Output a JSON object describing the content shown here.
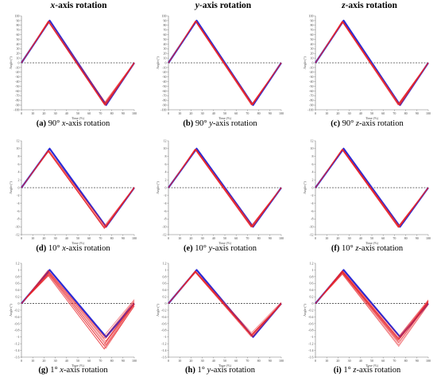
{
  "headers": [
    {
      "axis": "x",
      "rest": "-axis rotation"
    },
    {
      "axis": "y",
      "rest": "-axis rotation"
    },
    {
      "axis": "z",
      "rest": "-axis rotation"
    }
  ],
  "colors": {
    "reference": "#2a2ad6",
    "measured": "#e8262c",
    "baseline": "#444444"
  },
  "chart_data": [
    {
      "id": "a",
      "type": "line",
      "label": "(a)",
      "angle": "90°",
      "axis": "x",
      "rest": "-axis rotation",
      "xlabel": "Time (%)",
      "ylabel": "Angle (°)",
      "xlim": [
        0,
        100
      ],
      "ylim": [
        -100,
        100
      ],
      "xticks": [
        0,
        10,
        20,
        30,
        40,
        50,
        60,
        70,
        80,
        90,
        100
      ],
      "yticks": [
        100,
        90,
        80,
        70,
        60,
        50,
        40,
        30,
        20,
        10,
        0,
        -10,
        -20,
        -30,
        -40,
        -50,
        -60,
        -70,
        -80,
        -90,
        -100
      ],
      "reference": {
        "x": [
          0,
          25,
          75,
          100
        ],
        "y": [
          0,
          90,
          -90,
          0
        ]
      },
      "measured_traces": 10,
      "measured_peak": 88,
      "measured_trough": -88,
      "spread": 3
    },
    {
      "id": "b",
      "type": "line",
      "label": "(b)",
      "angle": "90°",
      "axis": "y",
      "rest": "-axis rotation",
      "xlabel": "Time (%)",
      "ylabel": "Angle (°)",
      "xlim": [
        0,
        100
      ],
      "ylim": [
        -100,
        100
      ],
      "xticks": [
        0,
        10,
        20,
        30,
        40,
        50,
        60,
        70,
        80,
        90,
        100
      ],
      "yticks": [
        100,
        90,
        80,
        70,
        60,
        50,
        40,
        30,
        20,
        10,
        0,
        -10,
        -20,
        -30,
        -40,
        -50,
        -60,
        -70,
        -80,
        -90,
        -100
      ],
      "reference": {
        "x": [
          0,
          25,
          75,
          100
        ],
        "y": [
          0,
          90,
          -90,
          0
        ]
      },
      "measured_traces": 10,
      "measured_peak": 89,
      "measured_trough": -89,
      "spread": 1
    },
    {
      "id": "c",
      "type": "line",
      "label": "(c)",
      "angle": "90°",
      "axis": "z",
      "rest": "-axis rotation",
      "xlabel": "Time (%)",
      "ylabel": "Angle (°)",
      "xlim": [
        0,
        100
      ],
      "ylim": [
        -100,
        100
      ],
      "xticks": [
        0,
        10,
        20,
        30,
        40,
        50,
        60,
        70,
        80,
        90,
        100
      ],
      "yticks": [
        100,
        90,
        80,
        70,
        60,
        50,
        40,
        30,
        20,
        10,
        0,
        -10,
        -20,
        -30,
        -40,
        -50,
        -60,
        -70,
        -80,
        -90,
        -100
      ],
      "reference": {
        "x": [
          0,
          25,
          75,
          100
        ],
        "y": [
          0,
          90,
          -90,
          0
        ]
      },
      "measured_traces": 10,
      "measured_peak": 88,
      "measured_trough": -89,
      "spread": 1.5
    },
    {
      "id": "d",
      "type": "line",
      "label": "(d)",
      "angle": "10°",
      "axis": "x",
      "rest": "-axis rotation",
      "xlabel": "Time (%)",
      "ylabel": "Angle (°)",
      "xlim": [
        0,
        100
      ],
      "ylim": [
        -12,
        12
      ],
      "xticks": [
        0,
        10,
        20,
        30,
        40,
        50,
        60,
        70,
        80,
        90,
        100
      ],
      "yticks": [
        12,
        10,
        8,
        6,
        4,
        2,
        0,
        -2,
        -4,
        -6,
        -8,
        -10,
        -12
      ],
      "reference": {
        "x": [
          0,
          25,
          75,
          100
        ],
        "y": [
          0,
          10,
          -10,
          0
        ]
      },
      "measured_traces": 10,
      "measured_peak": 9.4,
      "measured_trough": -10.2,
      "spread": 0.5
    },
    {
      "id": "e",
      "type": "line",
      "label": "(e)",
      "angle": "10°",
      "axis": "y",
      "rest": "-axis rotation",
      "xlabel": "Time (%)",
      "ylabel": "Angle (°)",
      "xlim": [
        0,
        100
      ],
      "ylim": [
        -12,
        12
      ],
      "xticks": [
        0,
        10,
        20,
        30,
        40,
        50,
        60,
        70,
        80,
        90,
        100
      ],
      "yticks": [
        12,
        10,
        8,
        6,
        4,
        2,
        0,
        -2,
        -4,
        -6,
        -8,
        -10,
        -12
      ],
      "reference": {
        "x": [
          0,
          25,
          75,
          100
        ],
        "y": [
          0,
          10,
          -10,
          0
        ]
      },
      "measured_traces": 10,
      "measured_peak": 9.8,
      "measured_trough": -10,
      "spread": 0.15
    },
    {
      "id": "f",
      "type": "line",
      "label": "(f)",
      "angle": "10°",
      "axis": "z",
      "rest": "-axis rotation",
      "xlabel": "Time (%)",
      "ylabel": "Angle (°)",
      "xlim": [
        0,
        100
      ],
      "ylim": [
        -12,
        12
      ],
      "xticks": [
        0,
        10,
        20,
        30,
        40,
        50,
        60,
        70,
        80,
        90,
        100
      ],
      "yticks": [
        12,
        10,
        8,
        6,
        4,
        2,
        0,
        -2,
        -4,
        -6,
        -8,
        -10,
        -12
      ],
      "reference": {
        "x": [
          0,
          25,
          75,
          100
        ],
        "y": [
          0,
          10,
          -10,
          0
        ]
      },
      "measured_traces": 10,
      "measured_peak": 9.8,
      "measured_trough": -10,
      "spread": 0.2
    },
    {
      "id": "g",
      "type": "line",
      "label": "(g)",
      "angle": "1°",
      "axis": "x",
      "rest": "-axis rotation",
      "xlabel": "Time (%)",
      "ylabel": "Angle (°)",
      "xlim": [
        0,
        100
      ],
      "ylim": [
        -1.6,
        1.2
      ],
      "xticks": [
        0,
        10,
        20,
        30,
        40,
        50,
        60,
        70,
        80,
        90,
        100
      ],
      "yticks": [
        1.2,
        1,
        0.8,
        0.6,
        0.4,
        0.2,
        0,
        -0.2,
        -0.4,
        -0.6,
        -0.8,
        -1,
        -1.2,
        -1.4,
        -1.6
      ],
      "reference": {
        "x": [
          0,
          25,
          75,
          100
        ],
        "y": [
          0,
          1,
          -1,
          0
        ]
      },
      "measured_traces": 12,
      "measured_peak": 0.9,
      "measured_trough": -1.2,
      "spread": 0.25
    },
    {
      "id": "h",
      "type": "line",
      "label": "(h)",
      "angle": "1°",
      "axis": "y",
      "rest": "-axis rotation",
      "xlabel": "Time (%)",
      "ylabel": "Angle (°)",
      "xlim": [
        0,
        100
      ],
      "ylim": [
        -1.6,
        1.2
      ],
      "xticks": [
        0,
        10,
        20,
        30,
        40,
        50,
        60,
        70,
        80,
        90,
        100
      ],
      "yticks": [
        1.2,
        1,
        0.8,
        0.6,
        0.4,
        0.2,
        0,
        -0.2,
        -0.4,
        -0.6,
        -0.8,
        -1,
        -1.2,
        -1.4,
        -1.6
      ],
      "reference": {
        "x": [
          0,
          25,
          75,
          100
        ],
        "y": [
          0,
          1,
          -1,
          0
        ]
      },
      "measured_traces": 10,
      "measured_peak": 0.95,
      "measured_trough": -0.95,
      "spread": 0.08
    },
    {
      "id": "i",
      "type": "line",
      "label": "(i)",
      "angle": "1°",
      "axis": "z",
      "rest": "-axis rotation",
      "xlabel": "Time (%)",
      "ylabel": "Angle (°)",
      "xlim": [
        0,
        100
      ],
      "ylim": [
        -1.6,
        1.2
      ],
      "xticks": [
        0,
        10,
        20,
        30,
        40,
        50,
        60,
        70,
        80,
        90,
        100
      ],
      "yticks": [
        1.2,
        1,
        0.8,
        0.6,
        0.4,
        0.2,
        0,
        -0.2,
        -0.4,
        -0.6,
        -0.8,
        -1,
        -1.2,
        -1.4,
        -1.6
      ],
      "reference": {
        "x": [
          0,
          25,
          75,
          100
        ],
        "y": [
          0,
          1,
          -1,
          0
        ]
      },
      "measured_traces": 12,
      "measured_peak": 0.9,
      "measured_trough": -1.2,
      "spread": 0.25
    }
  ]
}
